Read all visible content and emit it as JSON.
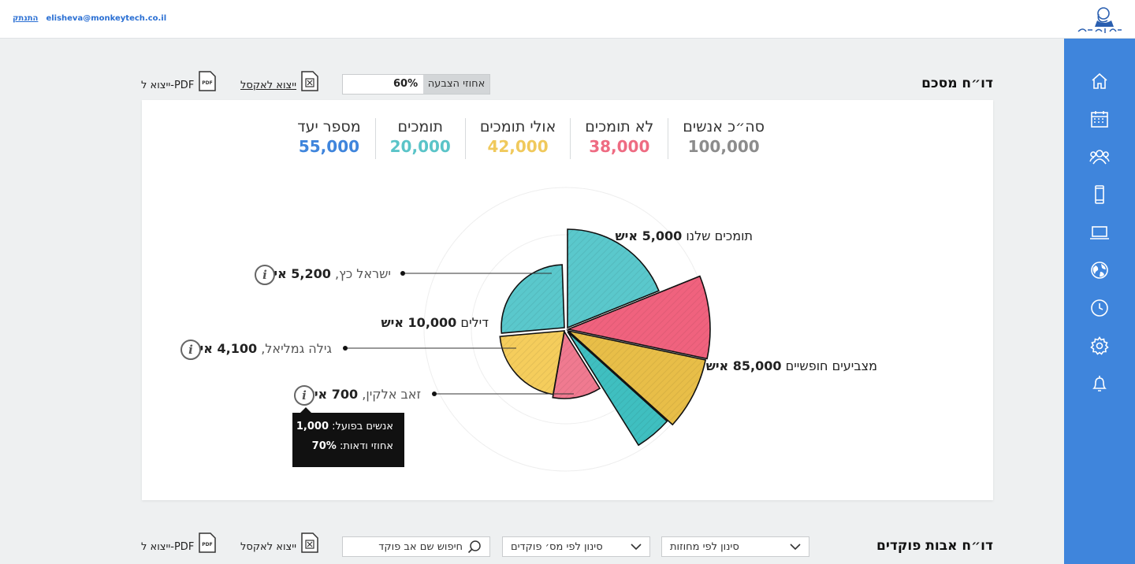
{
  "topbar": {
    "email": "elisheva@monkeytech.co.il",
    "logout": "התנתק"
  },
  "sidebar": {
    "items": [
      {
        "icon": "home-icon"
      },
      {
        "icon": "calendar-icon"
      },
      {
        "icon": "users-icon"
      },
      {
        "icon": "mobile-icon"
      },
      {
        "icon": "laptop-icon"
      },
      {
        "icon": "globe-icon"
      },
      {
        "icon": "clock-icon"
      },
      {
        "icon": "gear-icon"
      },
      {
        "icon": "bell-icon"
      }
    ]
  },
  "summary": {
    "title": "דו״ח מסכם",
    "vote_label": "אחוזי הצבעה",
    "vote_value": "60%",
    "export_excel": "ייצוא לאקסל",
    "export_pdf": "ייצוא ל-PDF",
    "stats": [
      {
        "label": "סה״כ אנשים",
        "value": "100,000",
        "color": "#8c8c8c"
      },
      {
        "label": "לא תומכים",
        "value": "38,000",
        "color": "#ee6b82"
      },
      {
        "label": "אולי תומכים",
        "value": "42,000",
        "color": "#f0c95c"
      },
      {
        "label": "תומכים",
        "value": "20,000",
        "color": "#5ac4c8"
      },
      {
        "label": "מספר יעד",
        "value": "55,000",
        "color": "#3f85dc"
      }
    ]
  },
  "chart_data": {
    "type": "pie",
    "slices": [
      {
        "label": "תומכים שלנו",
        "value": "5,000 איש",
        "color": "#5ac8cc"
      },
      {
        "label": "מצביעים חופשיים",
        "value": "85,000 איש",
        "color": "#f0627e"
      },
      {
        "label": "מצביעים חופשיים",
        "value": "",
        "color": "#e8be48"
      },
      {
        "label": "מצביעים חופשיים",
        "value": "",
        "color": "#3fbfc0"
      },
      {
        "label": "דילים",
        "value": "10,000 איש",
        "color": "#f07a90"
      },
      {
        "label": "דילים",
        "value": "",
        "color": "#f5cd5c"
      },
      {
        "label": "דילים",
        "value": "",
        "color": "#5ac8cc"
      }
    ],
    "labels": {
      "supporters": {
        "name": "תומכים שלנו",
        "value": "5,000 איש"
      },
      "free": {
        "name": "מצביעים חופשיים",
        "value": "85,000 איש"
      },
      "deals": {
        "name": "דילים",
        "value": "10,000 איש"
      }
    },
    "callouts": [
      {
        "name": "ישראל כץ,",
        "value": "5,200 איש"
      },
      {
        "name": "גילה גמליאל,",
        "value": "4,100 איש"
      },
      {
        "name": "זאב אלקין,",
        "value": "700 איש"
      }
    ],
    "tooltip": {
      "line1_label": "אנשים בפועל:",
      "line1_value": "1,000",
      "line2_label": "אחוזי ודאות:",
      "line2_value": "70%"
    }
  },
  "commanders": {
    "title": "דו״ח אבות פוקדים",
    "filter_region": "סינון לפי מחוזות",
    "filter_count": "סינון לפי מס׳ פוקדים",
    "search_placeholder": "חיפוש שם אב פוקד",
    "export_excel": "ייצוא לאקסל",
    "export_pdf": "ייצוא ל-PDF"
  }
}
